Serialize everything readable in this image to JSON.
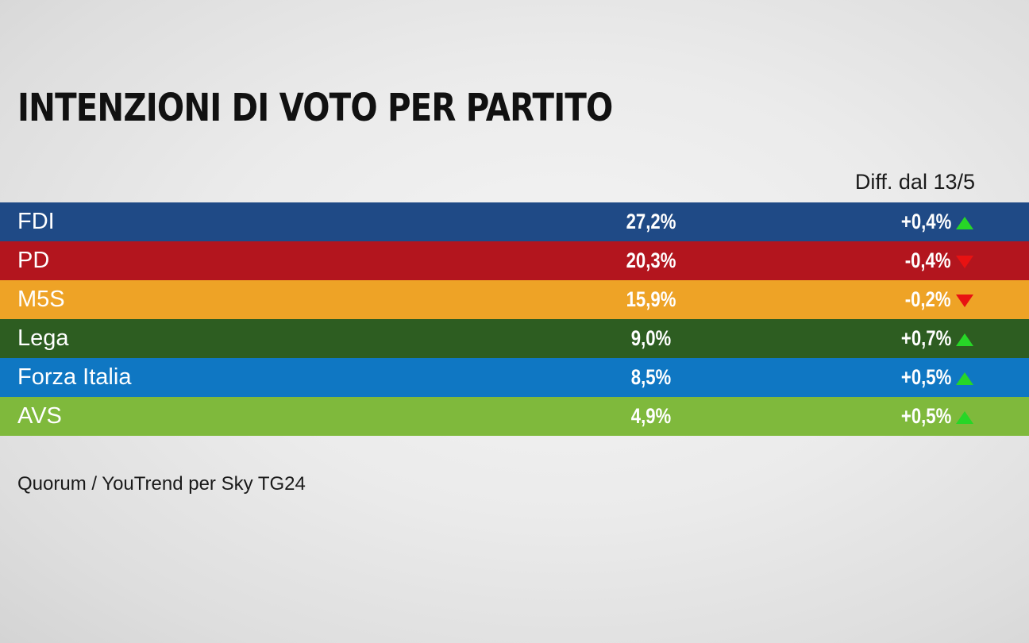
{
  "title": "INTENZIONI DI VOTO PER PARTITO",
  "diff_header": "Diff. dal 13/5",
  "source": "Quorum / YouTrend per Sky TG24",
  "chart_data": {
    "type": "table",
    "title": "INTENZIONI DI VOTO PER PARTITO",
    "columns": [
      "",
      "",
      "Diff. dal 13/5"
    ],
    "rows": [
      {
        "party": "FDI",
        "value_label": "27,2%",
        "value": 27.2,
        "diff_label": "+0,4%",
        "diff": 0.4,
        "direction": "up",
        "color": "#1f4a86",
        "text_color": "#ffffff"
      },
      {
        "party": "PD",
        "value_label": "20,3%",
        "value": 20.3,
        "diff_label": "-0,4%",
        "diff": -0.4,
        "direction": "down",
        "color": "#b3151e",
        "text_color": "#ffffff"
      },
      {
        "party": "M5S",
        "value_label": "15,9%",
        "value": 15.9,
        "diff_label": "-0,2%",
        "diff": -0.2,
        "direction": "down",
        "color": "#eea326",
        "text_color": "#ffffff"
      },
      {
        "party": "Lega",
        "value_label": "9,0%",
        "value": 9.0,
        "diff_label": "+0,7%",
        "diff": 0.7,
        "direction": "up",
        "color": "#2d5d21",
        "text_color": "#ffffff"
      },
      {
        "party": "Forza Italia",
        "value_label": "8,5%",
        "value": 8.5,
        "diff_label": "+0,5%",
        "diff": 0.5,
        "direction": "up",
        "color": "#0f77c3",
        "text_color": "#ffffff"
      },
      {
        "party": "AVS",
        "value_label": "4,9%",
        "value": 4.9,
        "diff_label": "+0,5%",
        "diff": 0.5,
        "direction": "up",
        "color": "#7fb93c",
        "text_color": "#ffffff"
      }
    ],
    "colors": {
      "up_arrow": "#27d627",
      "down_arrow": "#e81212"
    },
    "source": "Quorum / YouTrend per Sky TG24"
  }
}
